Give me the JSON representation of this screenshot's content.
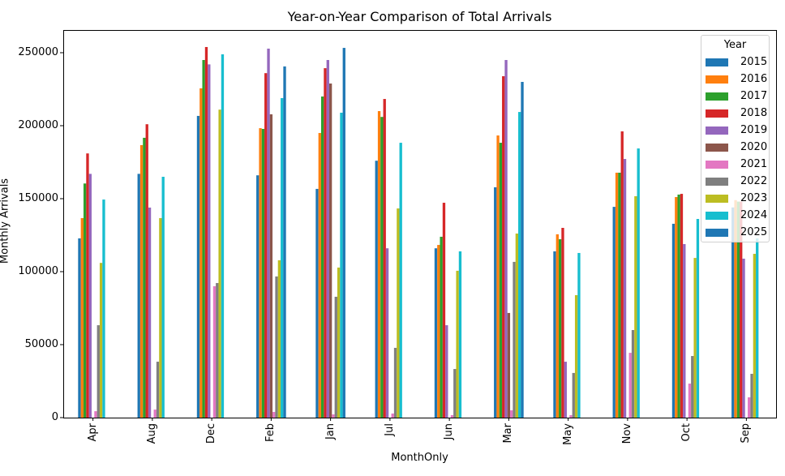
{
  "chart_data": {
    "type": "bar",
    "title": "Year-on-Year Comparison of Total Arrivals",
    "xlabel": "MonthOnly",
    "ylabel": "Monthly Arrivals",
    "ylim": [
      0,
      265600
    ],
    "yticks": [
      0,
      50000,
      100000,
      150000,
      200000,
      250000
    ],
    "grid": false,
    "legend_title": "Year",
    "legend_position": "upper right",
    "categories": [
      "Apr",
      "Aug",
      "Dec",
      "Feb",
      "Jan",
      "Jul",
      "Jun",
      "Mar",
      "May",
      "Nov",
      "Oct",
      "Sep"
    ],
    "series": [
      {
        "name": "2015",
        "color": "#1f77b4",
        "values": [
          122800,
          167000,
          206700,
          166000,
          156700,
          176000,
          116000,
          157800,
          113900,
          144400,
          132800,
          144000
        ]
      },
      {
        "name": "2016",
        "color": "#ff7f0e",
        "values": [
          136700,
          186700,
          225600,
          198300,
          195000,
          210000,
          118300,
          193300,
          125600,
          167800,
          151100,
          149000
        ]
      },
      {
        "name": "2017",
        "color": "#2ca02c",
        "values": [
          160400,
          191700,
          245000,
          197800,
          220000,
          206000,
          123900,
          188300,
          122200,
          167800,
          152800,
          148000
        ]
      },
      {
        "name": "2018",
        "color": "#d62728",
        "values": [
          181000,
          201000,
          253900,
          236000,
          239400,
          218300,
          147200,
          233900,
          130000,
          196100,
          153300,
          148000
        ]
      },
      {
        "name": "2019",
        "color": "#9467bd",
        "values": [
          167000,
          143900,
          242000,
          252800,
          245000,
          116000,
          63300,
          245000,
          38300,
          177200,
          118900,
          108900
        ]
      },
      {
        "name": "2020",
        "color": "#8c564b",
        "values": [
          null,
          null,
          null,
          207800,
          228900,
          null,
          null,
          71700,
          null,
          null,
          null,
          null
        ]
      },
      {
        "name": "2021",
        "color": "#e377c2",
        "values": [
          4400,
          5500,
          90000,
          3900,
          2200,
          2800,
          1700,
          5000,
          1700,
          44400,
          23300,
          13900
        ]
      },
      {
        "name": "2022",
        "color": "#7f7f7f",
        "values": [
          63300,
          38300,
          92200,
          96700,
          82800,
          47800,
          33300,
          106700,
          30600,
          60000,
          42200,
          30000
        ]
      },
      {
        "name": "2023",
        "color": "#bcbd22",
        "values": [
          106000,
          136700,
          211000,
          107800,
          102800,
          143300,
          100600,
          126100,
          83900,
          151700,
          109400,
          112200
        ]
      },
      {
        "name": "2024",
        "color": "#17becf",
        "values": [
          149400,
          165000,
          248900,
          218900,
          208900,
          188300,
          113900,
          209400,
          112800,
          184400,
          136100,
          122800
        ]
      },
      {
        "name": "2025",
        "color": "#1f77b4",
        "values": [
          null,
          null,
          null,
          240600,
          253300,
          null,
          null,
          230000,
          null,
          null,
          null,
          null
        ]
      }
    ]
  }
}
